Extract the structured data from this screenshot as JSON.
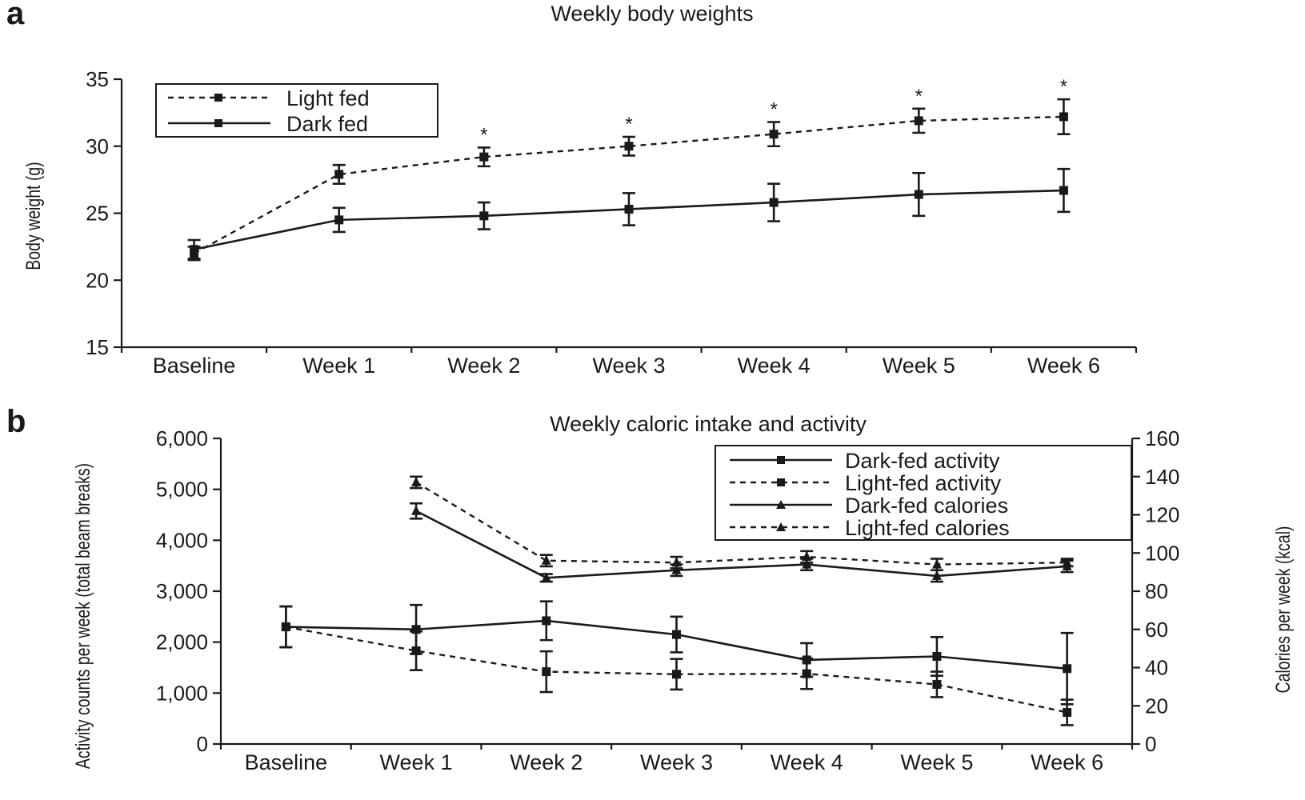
{
  "chart_data": [
    {
      "panel": "a",
      "type": "line",
      "title": "Weekly body weights",
      "xlabel": "",
      "ylabel": "Body weight (g)",
      "ylim": [
        15,
        35
      ],
      "yticks": [
        "15",
        "20",
        "25",
        "30",
        "35"
      ],
      "yticks_values": [
        15,
        20,
        25,
        30,
        35
      ],
      "categories": [
        "Baseline",
        "Week 1",
        "Week 2",
        "Week 3",
        "Week 4",
        "Week 5",
        "Week 6"
      ],
      "legend_position": "top-left",
      "grid": false,
      "series": [
        {
          "name": "Light fed",
          "style": "dashed",
          "marker": "square",
          "values": [
            22.0,
            27.9,
            29.2,
            30.0,
            30.9,
            31.9,
            32.2
          ],
          "errors": [
            0.5,
            0.7,
            0.7,
            0.7,
            0.9,
            0.9,
            1.3
          ]
        },
        {
          "name": "Dark fed",
          "style": "solid",
          "marker": "square",
          "values": [
            22.3,
            24.5,
            24.8,
            25.3,
            25.8,
            26.4,
            26.7
          ],
          "errors": [
            0.7,
            0.9,
            1.0,
            1.2,
            1.4,
            1.6,
            1.6
          ]
        }
      ],
      "annotations": [
        "*",
        "*",
        "*",
        "*",
        "*"
      ],
      "annotation_categories": [
        "Week 2",
        "Week 3",
        "Week 4",
        "Week 5",
        "Week 6"
      ]
    },
    {
      "panel": "b",
      "type": "line",
      "title": "Weekly caloric intake and activity",
      "xlabel": "",
      "ylabel": "Activity counts per week (total beam breaks)",
      "ylabel_right": "Calories per week (kcal)",
      "ylim": [
        0,
        6000
      ],
      "ylim_right": [
        0,
        160
      ],
      "yticks": [
        "0",
        "1,000",
        "2,000",
        "3,000",
        "4,000",
        "5,000",
        "6,000"
      ],
      "yticks_values": [
        0,
        1000,
        2000,
        3000,
        4000,
        5000,
        6000
      ],
      "yticks_right": [
        "0",
        "20",
        "40",
        "60",
        "80",
        "100",
        "120",
        "140",
        "160"
      ],
      "yticks_right_values": [
        0,
        20,
        40,
        60,
        80,
        100,
        120,
        140,
        160
      ],
      "categories": [
        "Baseline",
        "Week 1",
        "Week 2",
        "Week 3",
        "Week 4",
        "Week 5",
        "Week 6"
      ],
      "legend_position": "top-right",
      "grid": false,
      "series": [
        {
          "name": "Dark-fed activity",
          "style": "solid",
          "marker": "square",
          "axis": "left",
          "values": [
            2300,
            2250,
            2420,
            2150,
            1650,
            1720,
            1480
          ],
          "errors": [
            400,
            480,
            380,
            350,
            330,
            380,
            700
          ]
        },
        {
          "name": "Light-fed activity",
          "style": "dashed",
          "marker": "square",
          "axis": "left",
          "values": [
            2300,
            1830,
            1420,
            1370,
            1380,
            1170,
            620
          ],
          "errors": [
            400,
            380,
            400,
            300,
            300,
            250,
            250
          ]
        },
        {
          "name": "Dark-fed calories",
          "style": "solid",
          "marker": "triangle",
          "axis": "right",
          "values": [
            null,
            122,
            87,
            91,
            94,
            88,
            93
          ],
          "errors": [
            null,
            4,
            2,
            3,
            3,
            3,
            3
          ]
        },
        {
          "name": "Light-fed calories",
          "style": "dashed",
          "marker": "triangle",
          "axis": "right",
          "values": [
            null,
            137,
            96,
            95,
            98,
            94,
            95
          ],
          "errors": [
            null,
            3,
            3,
            3,
            3,
            3,
            2
          ]
        }
      ]
    }
  ]
}
